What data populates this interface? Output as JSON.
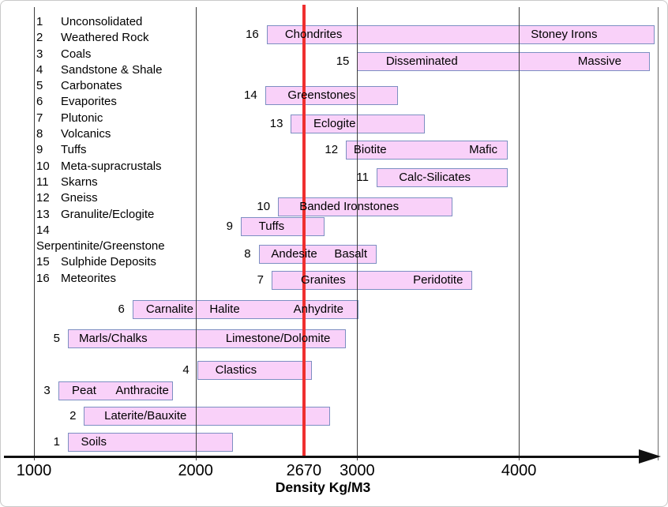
{
  "chart_data": {
    "type": "bar",
    "orientation": "horizontal-range",
    "title": "",
    "xlabel": "Density Kg/M3",
    "xlim": [
      1000,
      4860
    ],
    "grid": "vertical",
    "gridlines": [
      1000,
      2000,
      3000,
      4000
    ],
    "x_ticks": [
      {
        "value": 1000,
        "label": "1000"
      },
      {
        "value": 2000,
        "label": "2000"
      },
      {
        "value": 2670,
        "label": "2670"
      },
      {
        "value": 3000,
        "label": "3000"
      },
      {
        "value": 4000,
        "label": "4000"
      }
    ],
    "reference_line": {
      "value": 2670,
      "label": "2670"
    },
    "bars": [
      {
        "num": 16,
        "category": "Meteorites",
        "range": [
          2440,
          4840
        ],
        "labels": [
          {
            "text": "Chondrites",
            "at": 2730
          },
          {
            "text": "Stoney Irons",
            "at": 4280
          }
        ]
      },
      {
        "num": 15,
        "category": "Sulphide Deposits",
        "range": [
          3000,
          4810
        ],
        "labels": [
          {
            "text": "Disseminated",
            "at": 3400
          },
          {
            "text": "Massive",
            "at": 4500
          }
        ]
      },
      {
        "num": 14,
        "category": "Serpentinite/Greenstone",
        "range": [
          2430,
          3250
        ],
        "labels": [
          {
            "text": "Greenstones",
            "at": 2780
          }
        ]
      },
      {
        "num": 13,
        "category": "Granulite/Eclogite",
        "range": [
          2590,
          3420
        ],
        "labels": [
          {
            "text": "Eclogite",
            "at": 2860
          }
        ]
      },
      {
        "num": 12,
        "category": "Gneiss",
        "range": [
          2930,
          3930
        ],
        "labels": [
          {
            "text": "Biotite",
            "at": 3080
          },
          {
            "text": "Mafic",
            "at": 3780
          }
        ]
      },
      {
        "num": 11,
        "category": "Skarns",
        "range": [
          3120,
          3930
        ],
        "labels": [
          {
            "text": "Calc-Silicates",
            "at": 3480
          }
        ]
      },
      {
        "num": 10,
        "category": "Meta-supracrustals",
        "range": [
          2510,
          3590
        ],
        "labels": [
          {
            "text": "Banded Ironstones",
            "at": 2950
          }
        ]
      },
      {
        "num": 9,
        "category": "Tuffs",
        "range": [
          2280,
          2800
        ],
        "labels": [
          {
            "text": "Tuffs",
            "at": 2470
          }
        ]
      },
      {
        "num": 8,
        "category": "Volcanics",
        "range": [
          2390,
          3120
        ],
        "labels": [
          {
            "text": "Andesite",
            "at": 2610
          },
          {
            "text": "Basalt",
            "at": 2960
          }
        ]
      },
      {
        "num": 7,
        "category": "Plutonic",
        "range": [
          2470,
          3710
        ],
        "labels": [
          {
            "text": "Granites",
            "at": 2790
          },
          {
            "text": "Peridotite",
            "at": 3500
          }
        ]
      },
      {
        "num": 6,
        "category": "Evaporites",
        "range": [
          1610,
          3010
        ],
        "labels": [
          {
            "text": "Carnalite",
            "at": 1840
          },
          {
            "text": "Halite",
            "at": 2180
          },
          {
            "text": "Anhydrite",
            "at": 2760
          }
        ]
      },
      {
        "num": 5,
        "category": "Carbonates",
        "range": [
          1210,
          2930
        ],
        "labels": [
          {
            "text": "Marls/Chalks",
            "at": 1490
          },
          {
            "text": "Limestone/Dolomite",
            "at": 2510
          }
        ]
      },
      {
        "num": 4,
        "category": "Sandstone & Shale",
        "range": [
          2010,
          2720
        ],
        "labels": [
          {
            "text": "Clastics",
            "at": 2250
          }
        ]
      },
      {
        "num": 3,
        "category": "Coals",
        "range": [
          1150,
          1860
        ],
        "labels": [
          {
            "text": "Peat",
            "at": 1310
          },
          {
            "text": "Anthracite",
            "at": 1670
          }
        ]
      },
      {
        "num": 2,
        "category": "Weathered Rock",
        "range": [
          1310,
          2830
        ],
        "labels": [
          {
            "text": "Laterite/Bauxite",
            "at": 1690
          }
        ]
      },
      {
        "num": 1,
        "category": "Unconsolidated",
        "range": [
          1210,
          2230
        ],
        "labels": [
          {
            "text": "Soils",
            "at": 1370
          }
        ]
      }
    ]
  },
  "legend": {
    "items": [
      {
        "num": "1",
        "label": "Unconsolidated"
      },
      {
        "num": "2",
        "label": "Weathered Rock"
      },
      {
        "num": "3",
        "label": "Coals"
      },
      {
        "num": "4",
        "label": "Sandstone & Shale"
      },
      {
        "num": "5",
        "label": "Carbonates"
      },
      {
        "num": "6",
        "label": "Evaporites"
      },
      {
        "num": "7",
        "label": "Plutonic"
      },
      {
        "num": "8",
        "label": "Volcanics"
      },
      {
        "num": "9",
        "label": "Tuffs"
      },
      {
        "num": "10",
        "label": "Meta-supracrustals"
      },
      {
        "num": "11",
        "label": "Skarns"
      },
      {
        "num": "12",
        "label": "Gneiss"
      },
      {
        "num": "13",
        "label": "Granulite/Eclogite"
      },
      {
        "num": "14",
        "label": ""
      },
      {
        "num": "",
        "label": "Serpentinite/Greenstone"
      },
      {
        "num": "15",
        "label": "Sulphide Deposits"
      },
      {
        "num": "16",
        "label": "Meteorites"
      }
    ]
  },
  "colors": {
    "bar_fill": "#f9d1f9",
    "bar_border": "#7d8fc2",
    "reference_line": "#ef2f2f",
    "gridline": "#3d3d3d",
    "axis": "#101010",
    "text": "#000000"
  }
}
